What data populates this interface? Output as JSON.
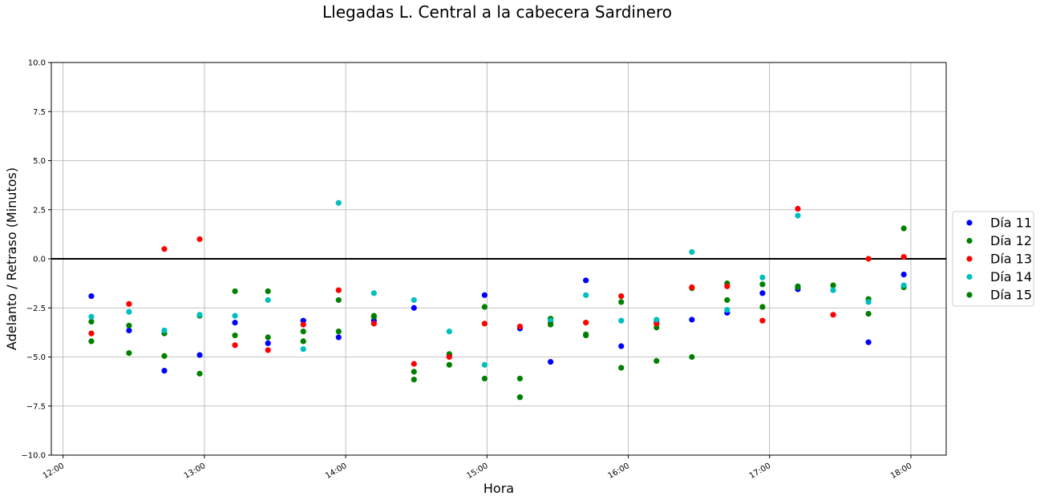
{
  "chart_data": {
    "type": "scatter",
    "title": "Llegadas L. Central a la cabecera Sardinero",
    "xlabel": "Hora",
    "ylabel": "Adelanto / Retraso (Minutos)",
    "xlim": [
      "11:55",
      "18:15"
    ],
    "ylim": [
      -10,
      10
    ],
    "xticks": [
      "12:00",
      "13:00",
      "14:00",
      "15:00",
      "16:00",
      "17:00",
      "18:00"
    ],
    "yticks": [
      -10.0,
      -7.5,
      -5.0,
      -2.5,
      0.0,
      2.5,
      5.0,
      7.5,
      10.0
    ],
    "ytick_labels": [
      "−10.0",
      "−7.5",
      "−5.0",
      "−2.5",
      "0.0",
      "2.5",
      "5.0",
      "7.5",
      "10.0"
    ],
    "grid": true,
    "reference_line": 0,
    "legend_placement": "right",
    "series": [
      {
        "name": "Día 11",
        "color": "#0000ff",
        "x": [
          "12:12",
          "12:28",
          "12:43",
          "12:58",
          "13:13",
          "13:27",
          "13:42",
          "13:57",
          "14:12",
          "14:29",
          "14:44",
          "14:59",
          "15:14",
          "15:27",
          "15:42",
          "15:57",
          "16:12",
          "16:27",
          "16:42",
          "16:57",
          "17:12",
          "17:42",
          "17:57"
        ],
        "y": [
          -1.9,
          -3.65,
          -5.7,
          -4.9,
          -3.25,
          -4.3,
          -3.15,
          -4.0,
          -3.15,
          -2.5,
          -4.9,
          -1.85,
          -3.55,
          -5.25,
          -1.1,
          -4.45,
          -3.2,
          -3.1,
          -2.75,
          -1.75,
          -1.55,
          -4.25,
          -0.8
        ]
      },
      {
        "name": "Día 12",
        "color": "#008000",
        "x": [
          "12:12",
          "12:28",
          "12:43",
          "12:58",
          "13:13",
          "13:27",
          "13:42",
          "13:57",
          "14:12",
          "14:29",
          "14:44",
          "14:59",
          "15:14",
          "15:27",
          "15:42",
          "15:57",
          "16:12",
          "16:27",
          "16:42",
          "16:57",
          "17:12",
          "17:27",
          "17:42",
          "17:57"
        ],
        "y": [
          -3.2,
          -3.4,
          -3.8,
          -2.9,
          -1.65,
          -4.0,
          -3.7,
          -3.7,
          -2.9,
          -5.75,
          -4.85,
          -2.45,
          -6.1,
          -3.05,
          -3.85,
          -2.2,
          -3.5,
          -1.5,
          -1.25,
          -1.3,
          -1.4,
          -1.35,
          -2.05,
          -1.45
        ]
      },
      {
        "name": "Día 13",
        "color": "#ff0000",
        "x": [
          "12:12",
          "12:28",
          "12:43",
          "12:58",
          "13:13",
          "13:27",
          "13:42",
          "13:57",
          "14:12",
          "14:29",
          "14:44",
          "14:59",
          "15:14",
          "15:27",
          "15:42",
          "15:57",
          "16:12",
          "16:27",
          "16:42",
          "16:57",
          "17:12",
          "17:27",
          "17:42",
          "17:57"
        ],
        "y": [
          -3.8,
          -2.3,
          0.5,
          1.0,
          -4.4,
          -4.65,
          -3.35,
          -1.6,
          -3.3,
          -5.35,
          -5.0,
          -3.3,
          -3.45,
          -3.25,
          -3.25,
          -1.9,
          -3.3,
          -1.45,
          -1.4,
          -3.15,
          2.55,
          -2.85,
          0.0,
          0.1
        ]
      },
      {
        "name": "Día 14",
        "color": "#00bfbf",
        "x": [
          "12:12",
          "12:28",
          "12:43",
          "12:58",
          "13:13",
          "13:27",
          "13:42",
          "13:57",
          "14:12",
          "14:29",
          "14:44",
          "14:59",
          "15:14",
          "15:27",
          "15:42",
          "15:57",
          "16:12",
          "16:27",
          "16:42",
          "16:57",
          "17:12",
          "17:27",
          "17:42",
          "17:57"
        ],
        "y": [
          -2.95,
          -2.7,
          -3.65,
          -2.85,
          -2.9,
          -2.1,
          -4.6,
          2.85,
          -1.75,
          -2.1,
          -3.7,
          -5.4,
          -7.05,
          -3.15,
          -1.85,
          -3.15,
          -3.1,
          0.35,
          -2.6,
          -0.95,
          2.2,
          -1.6,
          -2.2,
          -1.35
        ]
      },
      {
        "name": "Día 15",
        "color": "#008000",
        "x": [
          "12:12",
          "12:28",
          "12:43",
          "12:58",
          "13:13",
          "13:27",
          "13:42",
          "13:57",
          "14:12",
          "14:29",
          "14:44",
          "14:59",
          "15:14",
          "15:27",
          "15:42",
          "15:57",
          "16:12",
          "16:27",
          "16:42",
          "16:57",
          "17:12",
          "17:42",
          "17:57"
        ],
        "y": [
          -4.2,
          -4.8,
          -4.95,
          -5.85,
          -3.9,
          -1.65,
          -4.2,
          -2.1,
          -2.95,
          -6.15,
          -5.4,
          -6.1,
          -7.05,
          -3.35,
          -3.9,
          -5.55,
          -5.2,
          -5.0,
          -2.1,
          -2.45,
          -1.45,
          -2.8,
          1.55
        ]
      }
    ]
  }
}
